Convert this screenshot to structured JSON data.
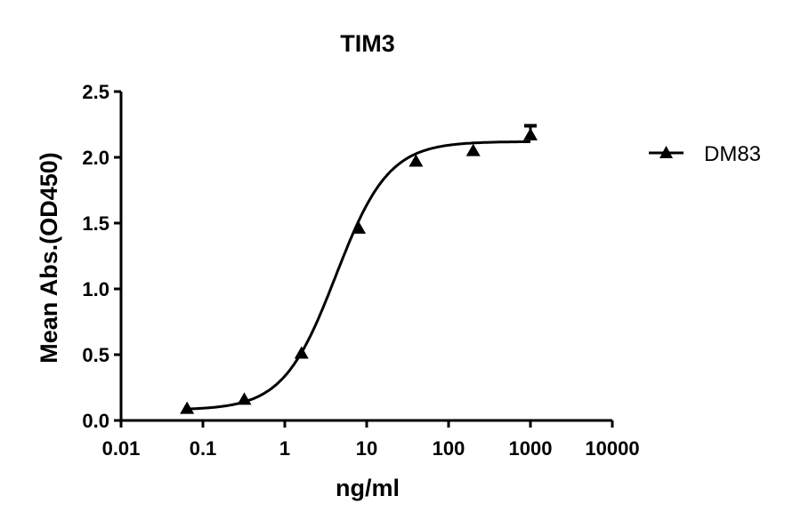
{
  "chart_data": {
    "type": "line",
    "title": "TIM3",
    "xlabel": "ng/ml",
    "ylabel": "Mean Abs.(OD450)",
    "xscale": "log",
    "xlim": [
      0.01,
      10000
    ],
    "ylim": [
      0.0,
      2.5
    ],
    "x_ticks": [
      "0.01",
      "0.1",
      "1",
      "10",
      "100",
      "1000",
      "10000"
    ],
    "y_ticks": [
      "0.0",
      "0.5",
      "1.0",
      "1.5",
      "2.0",
      "2.5"
    ],
    "grid": false,
    "legend_position": "right",
    "series": [
      {
        "name": "DM83",
        "marker": "triangle",
        "color": "#000000",
        "x": [
          0.064,
          0.32,
          1.6,
          8,
          40,
          200,
          1000
        ],
        "y": [
          0.09,
          0.16,
          0.51,
          1.46,
          1.97,
          2.05,
          2.17
        ],
        "error": [
          0,
          0,
          0,
          0,
          0,
          0,
          0.07
        ],
        "fit": "4PL sigmoid",
        "fit_params": {
          "bottom": 0.08,
          "top": 2.12,
          "ec50": 4.2,
          "hill": 1.35
        }
      }
    ]
  }
}
